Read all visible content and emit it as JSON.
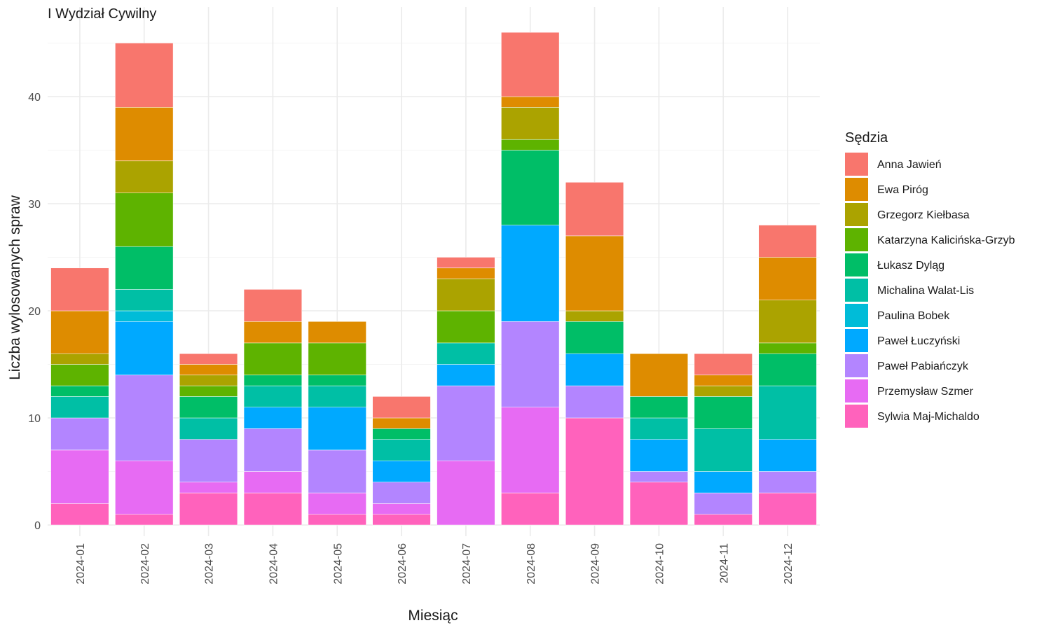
{
  "chart_data": {
    "type": "bar",
    "stacked": true,
    "title": "I Wydział Cywilny",
    "xlabel": "Miesiąc",
    "ylabel": "Liczba wylosowanych spraw",
    "ylim": [
      0,
      48
    ],
    "yticks": [
      0,
      10,
      20,
      30,
      40
    ],
    "grid": true,
    "legend_title": "Sędzia",
    "legend_position": "right",
    "categories": [
      "2024-01",
      "2024-02",
      "2024-03",
      "2024-04",
      "2024-05",
      "2024-06",
      "2024-07",
      "2024-08",
      "2024-09",
      "2024-10",
      "2024-11",
      "2024-12"
    ],
    "series": [
      {
        "name": "Sylwia Maj-Michaldo",
        "color": "#FF62BC",
        "values": [
          2,
          1,
          3,
          3,
          1,
          1,
          0,
          3,
          10,
          4,
          1,
          3
        ]
      },
      {
        "name": "Przemysław Szmer",
        "color": "#E76BF3",
        "values": [
          5,
          5,
          1,
          2,
          2,
          1,
          6,
          8,
          0,
          0,
          0,
          0
        ]
      },
      {
        "name": "Paweł Pabiańczyk",
        "color": "#B385FF",
        "values": [
          3,
          8,
          4,
          4,
          4,
          2,
          7,
          8,
          3,
          1,
          2,
          2
        ]
      },
      {
        "name": "Paweł Łuczyński",
        "color": "#00A9FF",
        "values": [
          0,
          5,
          0,
          2,
          4,
          2,
          2,
          9,
          3,
          3,
          2,
          3
        ]
      },
      {
        "name": "Paulina Bobek",
        "color": "#00BCD8",
        "values": [
          0,
          1,
          0,
          0,
          0,
          0,
          0,
          0,
          0,
          0,
          0,
          0
        ]
      },
      {
        "name": "Michalina Walat-Lis",
        "color": "#00BFA5",
        "values": [
          2,
          2,
          2,
          2,
          2,
          2,
          2,
          0,
          0,
          2,
          4,
          5
        ]
      },
      {
        "name": "Łukasz Dyląg",
        "color": "#00BE67",
        "values": [
          1,
          4,
          2,
          1,
          1,
          1,
          0,
          7,
          3,
          2,
          3,
          3
        ]
      },
      {
        "name": "Katarzyna Kalicińska-Grzyb",
        "color": "#5EB300",
        "values": [
          2,
          5,
          1,
          3,
          3,
          0,
          3,
          1,
          0,
          0,
          0,
          1
        ]
      },
      {
        "name": "Grzegorz Kiełbasa",
        "color": "#ABA300",
        "values": [
          1,
          3,
          1,
          0,
          0,
          0,
          3,
          3,
          1,
          0,
          1,
          4
        ]
      },
      {
        "name": "Ewa Piróg",
        "color": "#DE8C00",
        "values": [
          4,
          5,
          1,
          2,
          2,
          1,
          1,
          1,
          7,
          4,
          1,
          4
        ]
      },
      {
        "name": "Anna Jawień",
        "color": "#F8766D",
        "values": [
          4,
          6,
          1,
          3,
          0,
          2,
          1,
          6,
          5,
          0,
          2,
          3
        ]
      }
    ],
    "legend_order": [
      "Anna Jawień",
      "Ewa Piróg",
      "Grzegorz Kiełbasa",
      "Katarzyna Kalicińska-Grzyb",
      "Łukasz Dyląg",
      "Michalina Walat-Lis",
      "Paulina Bobek",
      "Paweł Łuczyński",
      "Paweł Pabiańczyk",
      "Przemysław Szmer",
      "Sylwia Maj-Michaldo"
    ]
  }
}
